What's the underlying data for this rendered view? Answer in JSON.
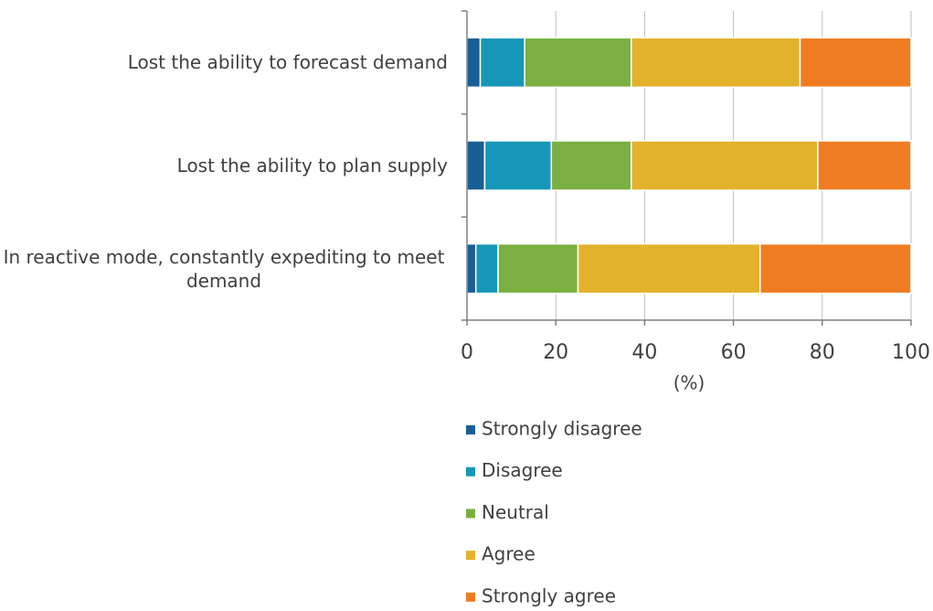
{
  "chart_data": {
    "type": "stacked_barh",
    "categories": [
      "Lost the ability to forecast demand",
      "Lost the ability to plan supply",
      "In reactive mode, constantly expediting to meet demand"
    ],
    "series": [
      {
        "name": "Strongly disagree",
        "color": "#1a5e96",
        "values": [
          3,
          4,
          2
        ]
      },
      {
        "name": "Disagree",
        "color": "#1697b7",
        "values": [
          10,
          15,
          5
        ]
      },
      {
        "name": "Neutral",
        "color": "#7ab041",
        "values": [
          24,
          18,
          18
        ]
      },
      {
        "name": "Agree",
        "color": "#e3b22b",
        "values": [
          38,
          42,
          41
        ]
      },
      {
        "name": "Strongly agree",
        "color": "#f07c22",
        "values": [
          25,
          21,
          34
        ]
      }
    ],
    "xlabel": "(%)",
    "xlim": [
      0,
      100
    ],
    "xticks": [
      0,
      20,
      40,
      60,
      80,
      100
    ],
    "grid": true,
    "legend": "bottom"
  }
}
